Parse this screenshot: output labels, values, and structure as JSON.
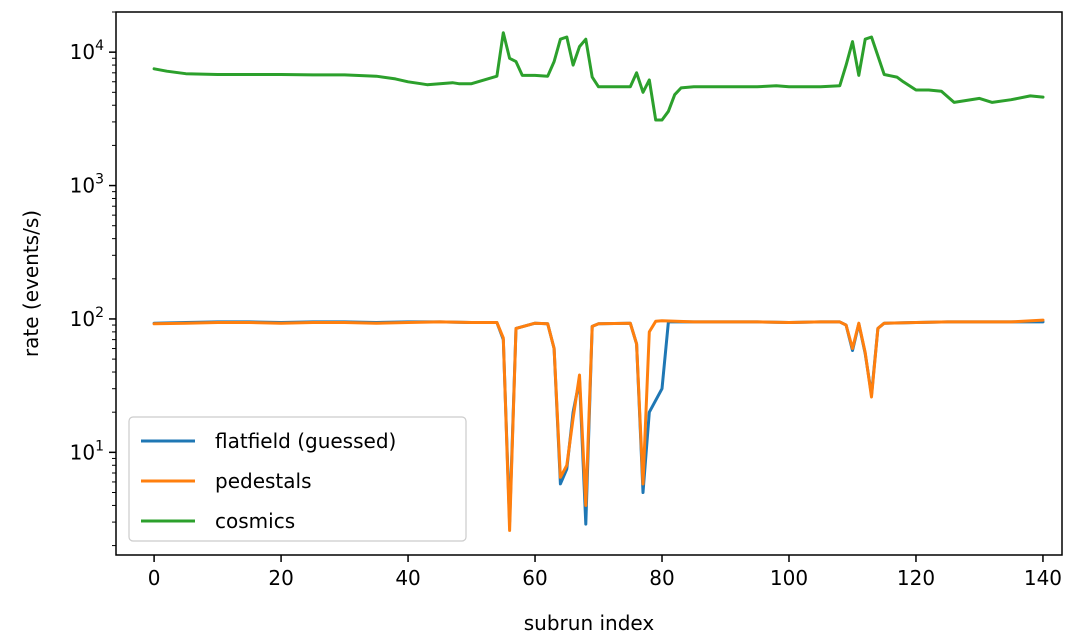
{
  "chart_data": {
    "type": "line",
    "title": "",
    "xlabel": "subrun index",
    "ylabel": "rate (events/s)",
    "xlim": [
      -6,
      143
    ],
    "ylim": [
      1.7,
      20000
    ],
    "yscale": "log",
    "grid": false,
    "legend_position": "lower-left",
    "x_ticks": [
      {
        "value": 0,
        "label": "0"
      },
      {
        "value": 20,
        "label": "20"
      },
      {
        "value": 40,
        "label": "40"
      },
      {
        "value": 60,
        "label": "60"
      },
      {
        "value": 80,
        "label": "80"
      },
      {
        "value": 100,
        "label": "100"
      },
      {
        "value": 120,
        "label": "120"
      },
      {
        "value": 140,
        "label": "140"
      }
    ],
    "y_ticks": [
      {
        "value": 10,
        "base": "10",
        "exp": "1"
      },
      {
        "value": 100,
        "base": "10",
        "exp": "2"
      },
      {
        "value": 1000,
        "base": "10",
        "exp": "3"
      },
      {
        "value": 10000,
        "base": "10",
        "exp": "4"
      }
    ],
    "series": [
      {
        "name": "flatfield (guessed)",
        "color": "#1f77b4",
        "x": [
          0,
          5,
          10,
          15,
          20,
          25,
          30,
          35,
          40,
          45,
          50,
          54,
          55,
          56,
          57,
          60,
          62,
          63,
          64,
          65,
          66,
          67,
          68,
          69,
          70,
          75,
          76,
          77,
          78,
          80,
          81,
          85,
          90,
          95,
          100,
          105,
          108,
          109,
          110,
          111,
          112,
          113,
          114,
          115,
          120,
          125,
          130,
          135,
          140
        ],
        "values": [
          93,
          94,
          95,
          95,
          94,
          95,
          95,
          94,
          95,
          95,
          94,
          94,
          70,
          3,
          85,
          93,
          92,
          60,
          5.8,
          7.5,
          20,
          35,
          2.9,
          88,
          92,
          93,
          65,
          5,
          20,
          30,
          95,
          95,
          95,
          95,
          94,
          95,
          95,
          90,
          58,
          92,
          55,
          27,
          85,
          93,
          94,
          95,
          95,
          95,
          95
        ]
      },
      {
        "name": "pedestals",
        "color": "#ff7f0e",
        "x": [
          0,
          5,
          10,
          15,
          20,
          25,
          30,
          35,
          40,
          45,
          50,
          54,
          55,
          56,
          57,
          60,
          62,
          63,
          64,
          65,
          66,
          67,
          68,
          69,
          70,
          75,
          76,
          77,
          78,
          79,
          80,
          85,
          90,
          95,
          100,
          105,
          108,
          109,
          110,
          111,
          112,
          113,
          114,
          115,
          120,
          125,
          130,
          135,
          140
        ],
        "values": [
          92,
          93,
          94,
          94,
          93,
          94,
          94,
          93,
          94,
          95,
          94,
          94,
          72,
          2.6,
          85,
          93,
          92,
          60,
          6.5,
          8,
          18,
          38,
          4,
          88,
          92,
          93,
          65,
          5.8,
          80,
          96,
          97,
          95,
          95,
          95,
          94,
          95,
          95,
          90,
          60,
          93,
          56,
          26,
          85,
          93,
          94,
          95,
          95,
          95,
          98
        ]
      },
      {
        "name": "cosmics",
        "color": "#2ca02c",
        "x": [
          0,
          2,
          5,
          10,
          15,
          20,
          25,
          30,
          35,
          38,
          40,
          42,
          43,
          45,
          47,
          48,
          50,
          52,
          54,
          55,
          56,
          57,
          58,
          60,
          62,
          63,
          64,
          65,
          66,
          67,
          68,
          69,
          70,
          75,
          76,
          77,
          78,
          79,
          80,
          81,
          82,
          83,
          85,
          90,
          95,
          98,
          100,
          105,
          108,
          109,
          110,
          111,
          112,
          113,
          115,
          117,
          118,
          120,
          122,
          124,
          126,
          130,
          132,
          135,
          138,
          140
        ],
        "values": [
          7500,
          7200,
          6900,
          6800,
          6800,
          6800,
          6750,
          6750,
          6600,
          6300,
          6000,
          5800,
          5700,
          5800,
          5900,
          5800,
          5800,
          6200,
          6600,
          14000,
          9000,
          8500,
          6700,
          6700,
          6600,
          8500,
          12500,
          13000,
          8000,
          11000,
          12500,
          6500,
          5500,
          5500,
          7000,
          5000,
          6200,
          3100,
          3100,
          3600,
          4800,
          5400,
          5500,
          5500,
          5500,
          5600,
          5500,
          5500,
          5600,
          8000,
          12000,
          6700,
          12500,
          13000,
          6800,
          6500,
          6000,
          5200,
          5200,
          5100,
          4200,
          4500,
          4200,
          4400,
          4700,
          4600
        ]
      }
    ]
  }
}
